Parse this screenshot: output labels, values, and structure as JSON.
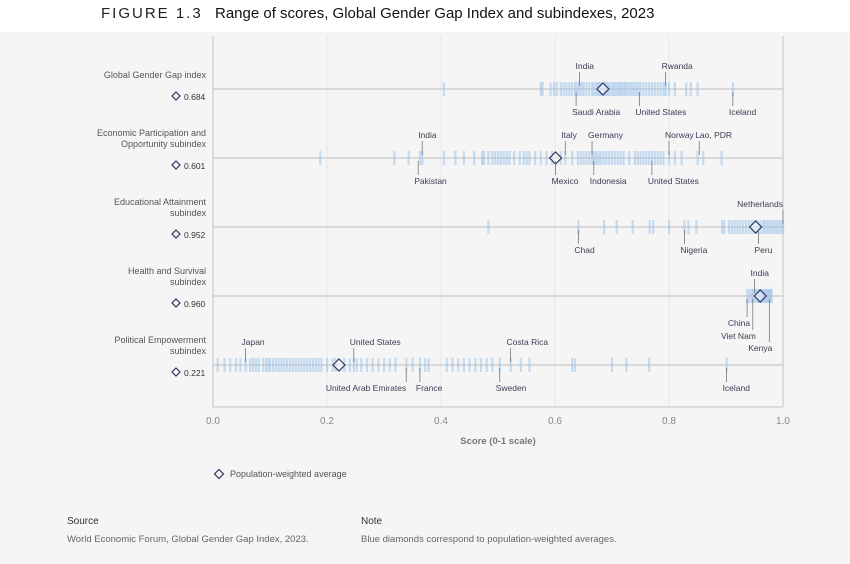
{
  "figure": {
    "number": "FIGURE 1.3",
    "title": "Range of scores, Global Gender Gap Index and subindexes, 2023"
  },
  "colors": {
    "tick": "#9cc3ea",
    "dense": "#2f8fd6",
    "diamond": "#2e3560",
    "axis": "#c4c4c4",
    "grid": "#e6e6e6"
  },
  "chart_data": {
    "type": "strip",
    "xlabel": "Score (0-1 scale)",
    "xlim": [
      0,
      1
    ],
    "xticks": [
      "0.0",
      "0.2",
      "0.4",
      "0.6",
      "0.8",
      "1.0"
    ],
    "grid": true,
    "legend": {
      "label": "Population-weighted average",
      "marker": "diamond",
      "placement": "bottom-left"
    },
    "rows": [
      {
        "name_lines": [
          "Global Gender Gap index"
        ],
        "average": 0.684,
        "average_label": "0.684",
        "values": [
          0.405,
          0.575,
          0.578,
          0.592,
          0.598,
          0.603,
          0.61,
          0.615,
          0.62,
          0.625,
          0.63,
          0.635,
          0.638,
          0.642,
          0.646,
          0.65,
          0.655,
          0.66,
          0.665,
          0.668,
          0.672,
          0.675,
          0.678,
          0.68,
          0.685,
          0.688,
          0.69,
          0.693,
          0.696,
          0.7,
          0.703,
          0.706,
          0.71,
          0.713,
          0.716,
          0.72,
          0.723,
          0.726,
          0.73,
          0.734,
          0.738,
          0.742,
          0.746,
          0.75,
          0.755,
          0.76,
          0.765,
          0.77,
          0.775,
          0.78,
          0.785,
          0.79,
          0.794,
          0.8,
          0.81,
          0.83,
          0.838,
          0.85,
          0.912
        ],
        "labels": [
          {
            "text": "India",
            "value": 0.643,
            "side": "above"
          },
          {
            "text": "Rwanda",
            "value": 0.794,
            "side": "above"
          },
          {
            "text": "Saudi Arabia",
            "value": 0.637,
            "side": "below"
          },
          {
            "text": "United States",
            "value": 0.748,
            "side": "below"
          },
          {
            "text": "Iceland",
            "value": 0.912,
            "side": "below"
          }
        ]
      },
      {
        "name_lines": [
          "Economic Participation and",
          "Opportunity subindex"
        ],
        "average": 0.601,
        "average_label": "0.601",
        "values": [
          0.188,
          0.318,
          0.343,
          0.363,
          0.367,
          0.405,
          0.425,
          0.44,
          0.458,
          0.472,
          0.475,
          0.483,
          0.49,
          0.495,
          0.5,
          0.505,
          0.51,
          0.515,
          0.52,
          0.528,
          0.538,
          0.545,
          0.55,
          0.555,
          0.565,
          0.575,
          0.585,
          0.595,
          0.61,
          0.618,
          0.63,
          0.64,
          0.645,
          0.65,
          0.655,
          0.66,
          0.665,
          0.668,
          0.672,
          0.676,
          0.68,
          0.685,
          0.69,
          0.695,
          0.7,
          0.705,
          0.71,
          0.715,
          0.72,
          0.73,
          0.74,
          0.745,
          0.75,
          0.755,
          0.76,
          0.765,
          0.77,
          0.775,
          0.78,
          0.785,
          0.79,
          0.8,
          0.81,
          0.822,
          0.85,
          0.86,
          0.892
        ],
        "labels": [
          {
            "text": "India",
            "value": 0.367,
            "side": "above"
          },
          {
            "text": "Italy",
            "value": 0.618,
            "side": "above"
          },
          {
            "text": "Germany",
            "value": 0.665,
            "side": "above"
          },
          {
            "text": "Norway",
            "value": 0.8,
            "side": "above"
          },
          {
            "text": "Lao, PDR",
            "value": 0.853,
            "side": "above"
          },
          {
            "text": "Pakistan",
            "value": 0.36,
            "side": "below"
          },
          {
            "text": "Mexico",
            "value": 0.601,
            "side": "below"
          },
          {
            "text": "Indonesia",
            "value": 0.668,
            "side": "below"
          },
          {
            "text": "United States",
            "value": 0.77,
            "side": "below"
          }
        ]
      },
      {
        "name_lines": [
          "Educational Attainment",
          "subindex"
        ],
        "average": 0.952,
        "average_label": "0.952",
        "values": [
          0.483,
          0.641,
          0.686,
          0.708,
          0.736,
          0.766,
          0.772,
          0.8,
          0.827,
          0.834,
          0.848,
          0.893,
          0.897,
          0.905,
          0.91,
          0.915,
          0.92,
          0.925,
          0.93,
          0.935,
          0.94,
          0.945,
          0.95,
          0.955,
          0.96,
          0.965,
          0.968,
          0.972,
          0.976,
          0.98,
          0.984,
          0.988,
          0.992,
          0.996,
          1.0
        ],
        "labels": [
          {
            "text": "Netherlands",
            "value": 1.0,
            "side": "above",
            "align": "end"
          },
          {
            "text": "Chad",
            "value": 0.641,
            "side": "below"
          },
          {
            "text": "Nigeria",
            "value": 0.827,
            "side": "below"
          },
          {
            "text": "Peru",
            "value": 0.957,
            "side": "below"
          }
        ]
      },
      {
        "name_lines": [
          "Health and Survival",
          "subindex"
        ],
        "average": 0.96,
        "average_label": "0.960",
        "values": [
          0.937,
          0.941,
          0.945,
          0.947,
          0.95,
          0.953,
          0.956,
          0.958,
          0.96,
          0.962,
          0.964,
          0.966,
          0.968,
          0.97,
          0.972,
          0.974,
          0.976,
          0.978,
          0.98
        ],
        "labels": [
          {
            "text": "India",
            "value": 0.95,
            "side": "above"
          },
          {
            "text": "China",
            "value": 0.937,
            "side": "below",
            "align": "end"
          },
          {
            "text": "Viet Nam",
            "value": 0.947,
            "side": "below",
            "align": "end"
          },
          {
            "text": "Kenya",
            "value": 0.976,
            "side": "below",
            "align": "end"
          }
        ]
      },
      {
        "name_lines": [
          "Political Empowerment",
          "subindex"
        ],
        "average": 0.221,
        "average_label": "0.221",
        "values": [
          0.008,
          0.02,
          0.03,
          0.04,
          0.048,
          0.057,
          0.065,
          0.07,
          0.075,
          0.08,
          0.088,
          0.093,
          0.097,
          0.1,
          0.105,
          0.11,
          0.115,
          0.12,
          0.125,
          0.13,
          0.135,
          0.14,
          0.145,
          0.15,
          0.155,
          0.16,
          0.165,
          0.17,
          0.175,
          0.18,
          0.185,
          0.19,
          0.2,
          0.21,
          0.215,
          0.23,
          0.24,
          0.247,
          0.252,
          0.26,
          0.27,
          0.28,
          0.29,
          0.3,
          0.31,
          0.32,
          0.339,
          0.35,
          0.363,
          0.372,
          0.378,
          0.41,
          0.42,
          0.43,
          0.44,
          0.45,
          0.46,
          0.47,
          0.48,
          0.49,
          0.503,
          0.522,
          0.54,
          0.555,
          0.63,
          0.635,
          0.7,
          0.725,
          0.765,
          0.901
        ],
        "labels": [
          {
            "text": "Japan",
            "value": 0.057,
            "side": "above"
          },
          {
            "text": "United States",
            "value": 0.247,
            "side": "above"
          },
          {
            "text": "Costa Rica",
            "value": 0.522,
            "side": "above"
          },
          {
            "text": "United Arab Emirates",
            "value": 0.339,
            "side": "below",
            "align": "end"
          },
          {
            "text": "France",
            "value": 0.363,
            "side": "below"
          },
          {
            "text": "Sweden",
            "value": 0.503,
            "side": "below"
          },
          {
            "text": "Iceland",
            "value": 0.901,
            "side": "below"
          }
        ]
      }
    ]
  },
  "footer": {
    "source_heading": "Source",
    "source_text": "World Economic Forum, Global Gender Gap Index, 2023.",
    "note_heading": "Note",
    "note_text": "Blue diamonds correspond to population-weighted averages."
  }
}
